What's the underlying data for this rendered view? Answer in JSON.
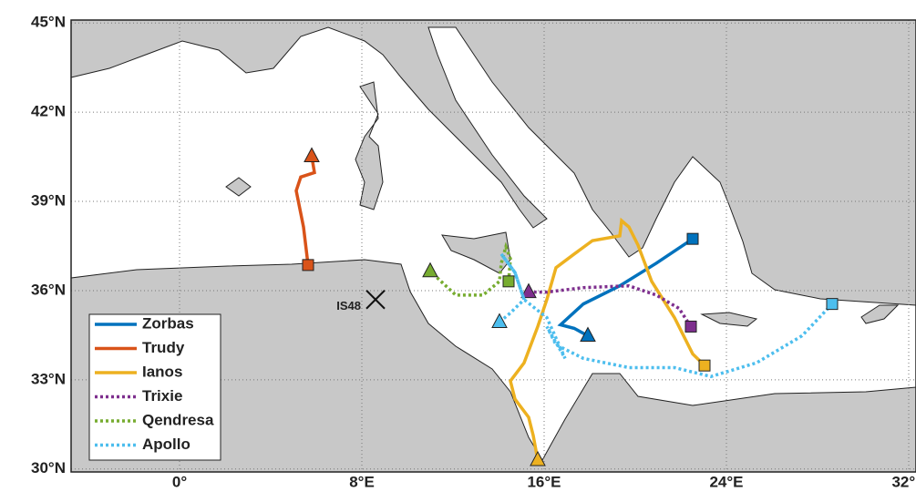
{
  "chart_data": {
    "type": "map",
    "xlim": [
      -4.76,
      32.32
    ],
    "ylim": [
      29.9,
      45.1
    ],
    "xticks": [
      {
        "value": 0,
        "label": "0°"
      },
      {
        "value": 8,
        "label": "8°E"
      },
      {
        "value": 16,
        "label": "16°E"
      },
      {
        "value": 24,
        "label": "24°E"
      },
      {
        "value": 32,
        "label": "32°E"
      }
    ],
    "yticks": [
      {
        "value": 30,
        "label": "30°N"
      },
      {
        "value": 33,
        "label": "33°N"
      },
      {
        "value": 36,
        "label": "36°N"
      },
      {
        "value": 39,
        "label": "39°N"
      },
      {
        "value": 42,
        "label": "42°N"
      },
      {
        "value": 45,
        "label": "45°N"
      }
    ],
    "grid": true,
    "legend": "lower left",
    "station": {
      "label": "IS48",
      "lon": 8.6,
      "lat": 35.7
    },
    "series": [
      {
        "name": "Zorbas",
        "color": "#0072bd",
        "style": "solid",
        "lon": [
          22.52,
          20.92,
          19.32,
          17.72,
          16.72,
          17.32,
          17.92
        ],
        "lat": [
          37.74,
          36.92,
          36.16,
          35.55,
          34.85,
          34.73,
          34.48
        ]
      },
      {
        "name": "Trudy",
        "color": "#d95319",
        "style": "solid",
        "lon": [
          5.64,
          5.44,
          5.12,
          5.32,
          5.92,
          5.8
        ],
        "lat": [
          36.86,
          38.14,
          39.36,
          39.82,
          39.97,
          40.52
        ]
      },
      {
        "name": "Ianos",
        "color": "#edb120",
        "style": "solid",
        "lon": [
          23.04,
          22.52,
          21.72,
          20.72,
          20.12,
          19.72,
          19.4,
          19.32,
          18.12,
          17.32,
          16.52,
          16.12,
          15.72,
          15.12,
          14.52,
          14.72,
          15.32,
          15.52,
          15.72
        ],
        "lat": [
          33.48,
          33.87,
          35.09,
          36.31,
          37.53,
          38.14,
          38.35,
          37.84,
          37.68,
          37.23,
          36.77,
          35.7,
          34.79,
          33.57,
          32.96,
          32.35,
          31.74,
          31.13,
          30.3
        ]
      },
      {
        "name": "Trixie",
        "color": "#7e2f8e",
        "style": "dotted",
        "lon": [
          22.44,
          21.92,
          20.92,
          19.72,
          17.72,
          16.12,
          15.32
        ],
        "lat": [
          34.79,
          35.4,
          35.85,
          36.16,
          36.1,
          35.95,
          35.95
        ]
      },
      {
        "name": "Qendresa",
        "color": "#77ac30",
        "style": "dotted",
        "lon": [
          14.44,
          14.52,
          14.32,
          14.12,
          14.04,
          13.32,
          12.12,
          11.0
        ],
        "lat": [
          36.31,
          37.07,
          37.47,
          36.92,
          36.31,
          35.85,
          35.85,
          36.65
        ]
      },
      {
        "name": "Apollo",
        "color": "#4dbeee",
        "style": "dotted",
        "lon": [
          28.64,
          27.32,
          25.32,
          23.32,
          21.72,
          19.72,
          17.72,
          16.52,
          16.12,
          16.92,
          16.12,
          15.12,
          14.72,
          14.12,
          14.72,
          15.12,
          14.52,
          14.04
        ],
        "lat": [
          35.55,
          34.48,
          33.57,
          33.11,
          33.41,
          33.41,
          33.72,
          34.18,
          34.79,
          33.72,
          35.09,
          35.7,
          36.61,
          37.23,
          36.61,
          35.7,
          35.25,
          34.94
        ]
      }
    ]
  }
}
